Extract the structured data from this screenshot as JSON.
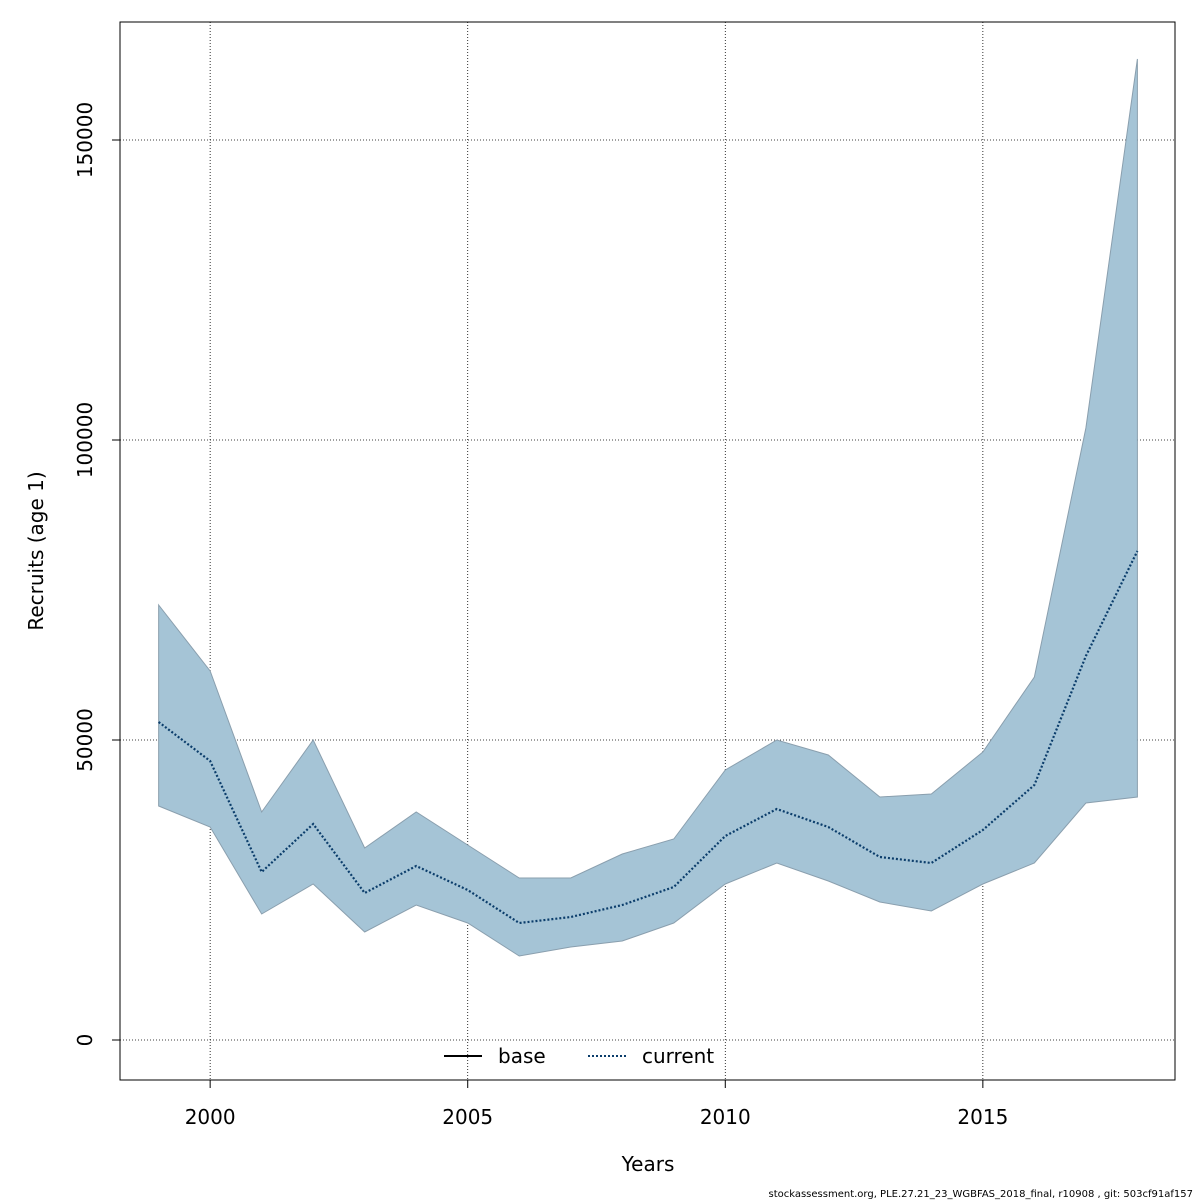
{
  "chart_data": {
    "type": "line",
    "xlabel": "Years",
    "ylabel": "Recruits (age 1)",
    "footer": "stockassessment.org, PLE.27.21_23_WGBFAS_2018_final, r10908 , git: 503cf91af157",
    "x": [
      1999,
      2000,
      2001,
      2002,
      2003,
      2004,
      2005,
      2006,
      2007,
      2008,
      2009,
      2010,
      2011,
      2012,
      2013,
      2014,
      2015,
      2016,
      2017,
      2018
    ],
    "series": [
      {
        "name": "base",
        "color": "#000000",
        "dash": false,
        "values": [
          53000,
          46500,
          28000,
          36000,
          24500,
          29000,
          25000,
          19500,
          20500,
          22500,
          25500,
          34000,
          38500,
          35500,
          30500,
          29500,
          35000,
          42500,
          64000,
          81500
        ]
      },
      {
        "name": "current",
        "color": "#0b3d6b",
        "dash": true,
        "values": [
          53000,
          46500,
          28000,
          36000,
          24500,
          29000,
          25000,
          19500,
          20500,
          22500,
          25500,
          34000,
          38500,
          35500,
          30500,
          29500,
          35000,
          42500,
          64000,
          81500
        ]
      }
    ],
    "band": {
      "color": "#a5c4d6",
      "upper": [
        72500,
        61500,
        38000,
        50000,
        32000,
        38000,
        32500,
        27000,
        27000,
        31000,
        33500,
        45000,
        50000,
        47500,
        40500,
        41000,
        48000,
        60500,
        102000,
        163500
      ],
      "lower": [
        39000,
        35500,
        21000,
        26000,
        18000,
        22500,
        19500,
        14000,
        15500,
        16500,
        19500,
        26000,
        29500,
        26500,
        23000,
        21500,
        26000,
        29500,
        39500,
        40500
      ]
    },
    "xlim": [
      1998.25,
      2018.73
    ],
    "xticks": [
      2000,
      2005,
      2010,
      2015
    ],
    "ylim": [
      -6667,
      169667
    ],
    "yticks": [
      0,
      50000,
      100000,
      150000
    ],
    "grid": true,
    "legend": "bottom"
  }
}
